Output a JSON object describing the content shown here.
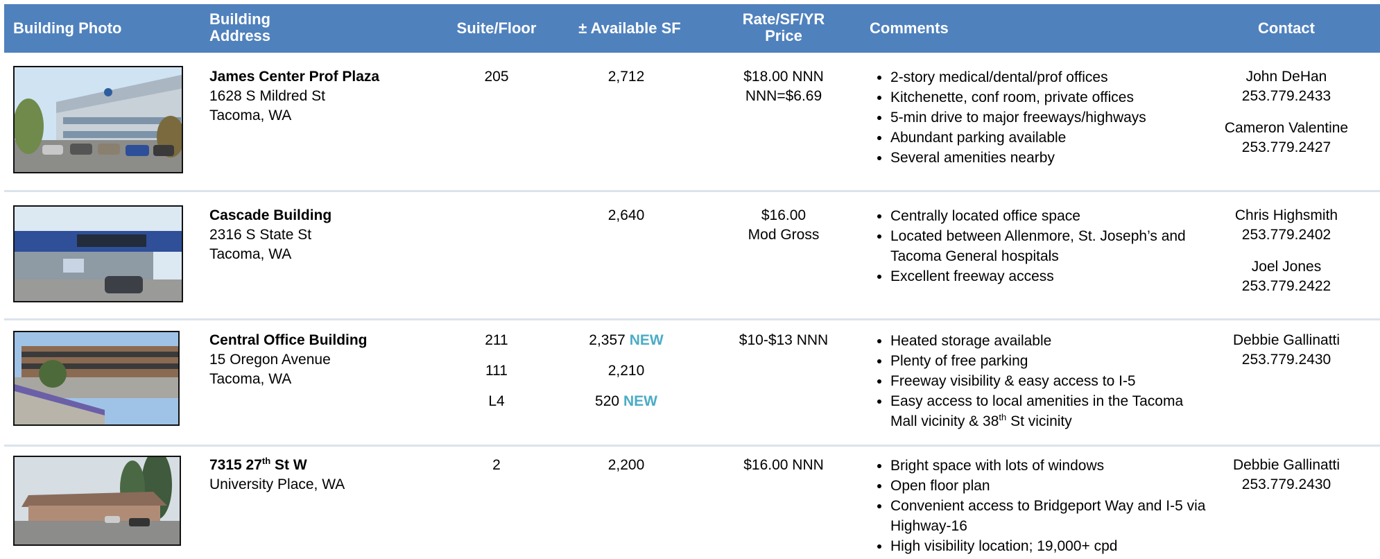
{
  "header": {
    "columns": [
      "Building Photo",
      "Building Address",
      "Suite/Floor",
      "± Available SF",
      "Rate/SF/YR Price",
      "Comments",
      "Contact"
    ]
  },
  "listings": [
    {
      "name": "James Center Prof Plaza",
      "address": [
        "1628 S Mildred St",
        "Tacoma, WA"
      ],
      "suites": [
        "205"
      ],
      "sf": [
        {
          "area": "2,712"
        }
      ],
      "rate": [
        "$18.00 NNN",
        "NNN=$6.69"
      ],
      "comments": [
        "2-story medical/dental/prof offices",
        "Kitchenette, conf room, private offices",
        "5-min drive to major freeways/highways",
        "Abundant parking available",
        "Several amenities nearby"
      ],
      "contacts": [
        {
          "name": "John DeHan",
          "phone": "253.779.2433"
        },
        {
          "name": "Cameron Valentine",
          "phone": "253.779.2427"
        }
      ]
    },
    {
      "name": "Cascade Building",
      "address": [
        "2316 S State St",
        "Tacoma, WA"
      ],
      "suites": [],
      "sf": [
        {
          "area": "2,640"
        }
      ],
      "rate": [
        "$16.00",
        "Mod Gross"
      ],
      "comments": [
        "Centrally located office space",
        "Located between Allenmore, St. Joseph’s and Tacoma General hospitals",
        "Excellent freeway access"
      ],
      "contacts": [
        {
          "name": "Chris Highsmith",
          "phone": "253.779.2402"
        },
        {
          "name": "Joel Jones",
          "phone": "253.779.2422"
        }
      ]
    },
    {
      "name": "Central Office Building",
      "address": [
        "15 Oregon Avenue",
        "Tacoma, WA"
      ],
      "suites": [
        "211",
        "111",
        "L4"
      ],
      "sf": [
        {
          "area": "2,357",
          "tag": "NEW"
        },
        {
          "area": "2,210"
        },
        {
          "area": "520",
          "tag": "NEW"
        }
      ],
      "rate": [
        "$10-$13 NNN"
      ],
      "comments": [
        "Heated storage available",
        "Plenty of free parking",
        "Freeway visibility & easy access to I-5",
        [
          {
            "text": "Easy access to local amenities in the Tacoma Mall vicinity & 38"
          },
          {
            "text": "th",
            "sup": true
          },
          {
            "text": " St vicinity"
          }
        ]
      ],
      "contacts": [
        {
          "name": "Debbie Gallinatti",
          "phone": "253.779.2430"
        }
      ]
    },
    {
      "name": [
        {
          "text": "7315 27"
        },
        {
          "text": "th",
          "sup": true
        },
        {
          "text": " St W"
        }
      ],
      "address": [
        "University Place, WA"
      ],
      "suites": [
        "2"
      ],
      "sf": [
        {
          "area": "2,200"
        }
      ],
      "rate": [
        "$16.00 NNN"
      ],
      "comments": [
        "Bright space with lots of windows",
        "Open floor plan",
        "Convenient access to Bridgeport Way and I-5 via Highway-16",
        "High visibility location; 19,000+ cpd"
      ],
      "contacts": [
        {
          "name": "Debbie Gallinatti",
          "phone": "253.779.2430"
        }
      ]
    }
  ]
}
